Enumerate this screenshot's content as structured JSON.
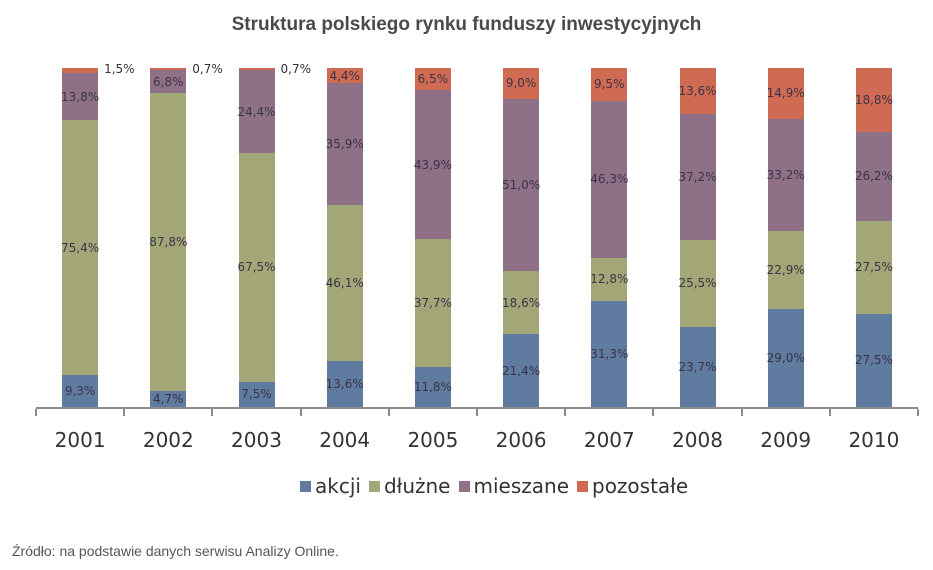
{
  "header": {
    "title": "Struktura polskiego rynku funduszy inwestycyjnych"
  },
  "footer": {
    "source": "Źródło: na podstawie danych serwisu Analizy Online."
  },
  "colors": {
    "akcji": "#5f7ba0",
    "dluzne": "#a3a777",
    "mieszane": "#8f7187",
    "pozostale": "#d06b53"
  },
  "legend": [
    {
      "key": "akcji",
      "label": "akcji",
      "color": "#5f7ba0"
    },
    {
      "key": "dluzne",
      "label": "dłużne",
      "color": "#a3a777"
    },
    {
      "key": "mieszane",
      "label": "mieszane",
      "color": "#8f7187"
    },
    {
      "key": "pozostale",
      "label": "pozostałe",
      "color": "#d06b53"
    }
  ],
  "chart_data": {
    "type": "bar",
    "stacked": true,
    "normalized": true,
    "title": "Struktura polskiego rynku funduszy inwestycyjnych",
    "xlabel": "",
    "ylabel": "",
    "ylim": [
      0,
      100
    ],
    "grid": false,
    "legend_position": "bottom",
    "categories": [
      "2001",
      "2002",
      "2003",
      "2004",
      "2005",
      "2006",
      "2007",
      "2008",
      "2009",
      "2010"
    ],
    "series": [
      {
        "name": "akcji",
        "values": [
          9.3,
          4.7,
          7.5,
          13.6,
          11.8,
          21.4,
          31.3,
          23.7,
          29.0,
          27.5
        ]
      },
      {
        "name": "dłużne",
        "values": [
          75.4,
          87.8,
          67.5,
          46.1,
          37.7,
          18.6,
          12.8,
          25.5,
          22.9,
          27.5
        ]
      },
      {
        "name": "mieszane",
        "values": [
          13.8,
          6.8,
          24.4,
          35.9,
          43.9,
          51.0,
          46.3,
          37.2,
          33.2,
          26.2
        ]
      },
      {
        "name": "pozostałe",
        "values": [
          1.5,
          0.7,
          0.7,
          4.4,
          6.5,
          9.0,
          9.5,
          13.6,
          14.9,
          18.8
        ]
      }
    ],
    "labels": [
      [
        "9,3%",
        "75,4%",
        "13,8%",
        "1,5%"
      ],
      [
        "4,7%",
        "87,8%",
        "6,8%",
        "0,7%"
      ],
      [
        "7,5%",
        "67,5%",
        "24,4%",
        "0,7%"
      ],
      [
        "13,6%",
        "46,1%",
        "35,9%",
        "4,4%"
      ],
      [
        "11,8%",
        "37,7%",
        "43,9%",
        "6,5%"
      ],
      [
        "21,4%",
        "18,6%",
        "51,0%",
        "9,0%"
      ],
      [
        "31,3%",
        "12,8%",
        "46,3%",
        "9,5%"
      ],
      [
        "23,7%",
        "25,5%",
        "37,2%",
        "13,6%"
      ],
      [
        "29,0%",
        "22,9%",
        "33,2%",
        "14,9%"
      ],
      [
        "27,5%",
        "27,5%",
        "26,2%",
        "18,8%"
      ]
    ]
  }
}
